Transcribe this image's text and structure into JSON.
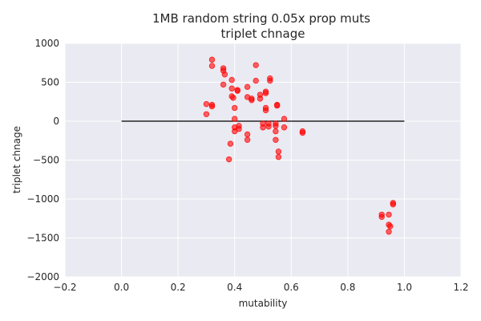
{
  "chart_data": {
    "type": "scatter",
    "title_lines": [
      "1MB random string   0.05x prop muts",
      "triplet chnage"
    ],
    "xlabel": "mutability",
    "ylabel": "triplet chnage",
    "xlim": [
      -0.2,
      1.2
    ],
    "ylim": [
      -2000,
      1000
    ],
    "xticks": [
      -0.2,
      0.0,
      0.2,
      0.4,
      0.6,
      0.8,
      1.0,
      1.2
    ],
    "xtick_labels": [
      "−0.2",
      "0.0",
      "0.2",
      "0.4",
      "0.6",
      "0.8",
      "1.0",
      "1.2"
    ],
    "yticks": [
      -2000,
      -1500,
      -1000,
      -500,
      0,
      500,
      1000
    ],
    "ytick_labels": [
      "−2000",
      "−1500",
      "−1000",
      "−500",
      "0",
      "500",
      "1000"
    ],
    "grid": true,
    "background": "#eaeaf2",
    "point_color": "#ff0000",
    "line_color": "#000000",
    "reference_line": {
      "x": [
        0.0,
        1.0
      ],
      "y": [
        0,
        0
      ]
    },
    "points": [
      {
        "x": 0.32,
        "y": 790
      },
      {
        "x": 0.32,
        "y": 710
      },
      {
        "x": 0.36,
        "y": 680
      },
      {
        "x": 0.36,
        "y": 650
      },
      {
        "x": 0.365,
        "y": 600
      },
      {
        "x": 0.36,
        "y": 470
      },
      {
        "x": 0.39,
        "y": 530
      },
      {
        "x": 0.39,
        "y": 420
      },
      {
        "x": 0.41,
        "y": 400
      },
      {
        "x": 0.41,
        "y": 390
      },
      {
        "x": 0.39,
        "y": 320
      },
      {
        "x": 0.395,
        "y": 300
      },
      {
        "x": 0.3,
        "y": 220
      },
      {
        "x": 0.32,
        "y": 210
      },
      {
        "x": 0.32,
        "y": 190
      },
      {
        "x": 0.3,
        "y": 90
      },
      {
        "x": 0.4,
        "y": 170
      },
      {
        "x": 0.4,
        "y": 30
      },
      {
        "x": 0.4,
        "y": -80
      },
      {
        "x": 0.415,
        "y": -60
      },
      {
        "x": 0.415,
        "y": -100
      },
      {
        "x": 0.4,
        "y": -130
      },
      {
        "x": 0.385,
        "y": -290
      },
      {
        "x": 0.38,
        "y": -490
      },
      {
        "x": 0.445,
        "y": -170
      },
      {
        "x": 0.445,
        "y": -240
      },
      {
        "x": 0.445,
        "y": 440
      },
      {
        "x": 0.445,
        "y": 310
      },
      {
        "x": 0.46,
        "y": 290
      },
      {
        "x": 0.46,
        "y": 270
      },
      {
        "x": 0.475,
        "y": 720
      },
      {
        "x": 0.475,
        "y": 520
      },
      {
        "x": 0.49,
        "y": 340
      },
      {
        "x": 0.49,
        "y": 290
      },
      {
        "x": 0.5,
        "y": -30
      },
      {
        "x": 0.5,
        "y": -80
      },
      {
        "x": 0.51,
        "y": 380
      },
      {
        "x": 0.51,
        "y": 360
      },
      {
        "x": 0.51,
        "y": 170
      },
      {
        "x": 0.51,
        "y": 140
      },
      {
        "x": 0.52,
        "y": -30
      },
      {
        "x": 0.52,
        "y": -70
      },
      {
        "x": 0.525,
        "y": 550
      },
      {
        "x": 0.525,
        "y": 520
      },
      {
        "x": 0.545,
        "y": -130
      },
      {
        "x": 0.545,
        "y": -240
      },
      {
        "x": 0.545,
        "y": -30
      },
      {
        "x": 0.545,
        "y": -60
      },
      {
        "x": 0.55,
        "y": 210
      },
      {
        "x": 0.55,
        "y": 200
      },
      {
        "x": 0.555,
        "y": -390
      },
      {
        "x": 0.555,
        "y": -460
      },
      {
        "x": 0.575,
        "y": 30
      },
      {
        "x": 0.575,
        "y": -80
      },
      {
        "x": 0.64,
        "y": -130
      },
      {
        "x": 0.64,
        "y": -150
      },
      {
        "x": 0.92,
        "y": -1200
      },
      {
        "x": 0.92,
        "y": -1230
      },
      {
        "x": 0.945,
        "y": -1200
      },
      {
        "x": 0.945,
        "y": -1330
      },
      {
        "x": 0.95,
        "y": -1350
      },
      {
        "x": 0.945,
        "y": -1420
      },
      {
        "x": 0.96,
        "y": -1050
      },
      {
        "x": 0.96,
        "y": -1070
      }
    ]
  }
}
